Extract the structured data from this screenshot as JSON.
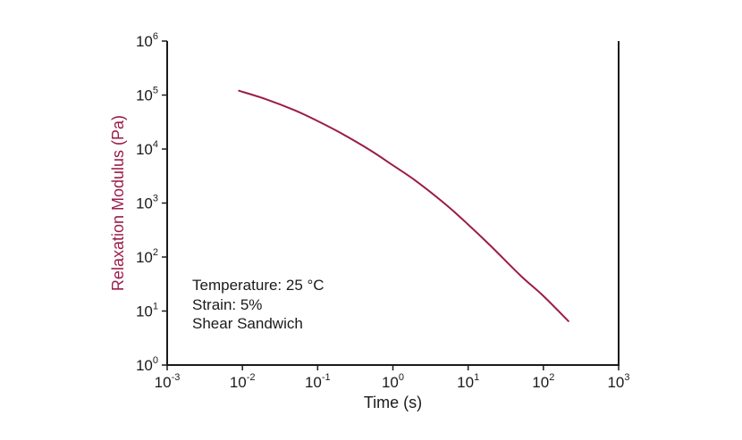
{
  "chart_data": {
    "type": "line",
    "xlabel": "Time (s)",
    "ylabel": "Relaxation Modulus (Pa)",
    "x_scale": "log",
    "y_scale": "log",
    "xlim": [
      0.001,
      1000
    ],
    "ylim": [
      1,
      1000000
    ],
    "x_ticks": [
      {
        "base": "10",
        "exp": "-3",
        "value": 0.001
      },
      {
        "base": "10",
        "exp": "-2",
        "value": 0.01
      },
      {
        "base": "10",
        "exp": "-1",
        "value": 0.1
      },
      {
        "base": "10",
        "exp": "0",
        "value": 1
      },
      {
        "base": "10",
        "exp": "1",
        "value": 10
      },
      {
        "base": "10",
        "exp": "2",
        "value": 100
      },
      {
        "base": "10",
        "exp": "3",
        "value": 1000
      }
    ],
    "y_ticks": [
      {
        "base": "10",
        "exp": "0",
        "value": 1
      },
      {
        "base": "10",
        "exp": "1",
        "value": 10
      },
      {
        "base": "10",
        "exp": "2",
        "value": 100
      },
      {
        "base": "10",
        "exp": "3",
        "value": 1000
      },
      {
        "base": "10",
        "exp": "4",
        "value": 10000
      },
      {
        "base": "10",
        "exp": "5",
        "value": 100000
      },
      {
        "base": "10",
        "exp": "6",
        "value": 1000000
      }
    ],
    "grid": false,
    "series": [
      {
        "color": "#9b1c4a",
        "points": [
          [
            0.009,
            120000
          ],
          [
            0.02,
            85000
          ],
          [
            0.05,
            52000
          ],
          [
            0.1,
            33000
          ],
          [
            0.2,
            20000
          ],
          [
            0.5,
            9500
          ],
          [
            1,
            5000
          ],
          [
            2,
            2600
          ],
          [
            5,
            950
          ],
          [
            10,
            400
          ],
          [
            20,
            160
          ],
          [
            50,
            45
          ],
          [
            100,
            19
          ],
          [
            215,
            6.5
          ]
        ]
      }
    ],
    "annotations": [
      "Temperature: 25 °C",
      "Strain: 5%",
      "Shear Sandwich"
    ],
    "axis_color": "#1a1a1a",
    "ylabel_color": "#9b1c4a"
  }
}
